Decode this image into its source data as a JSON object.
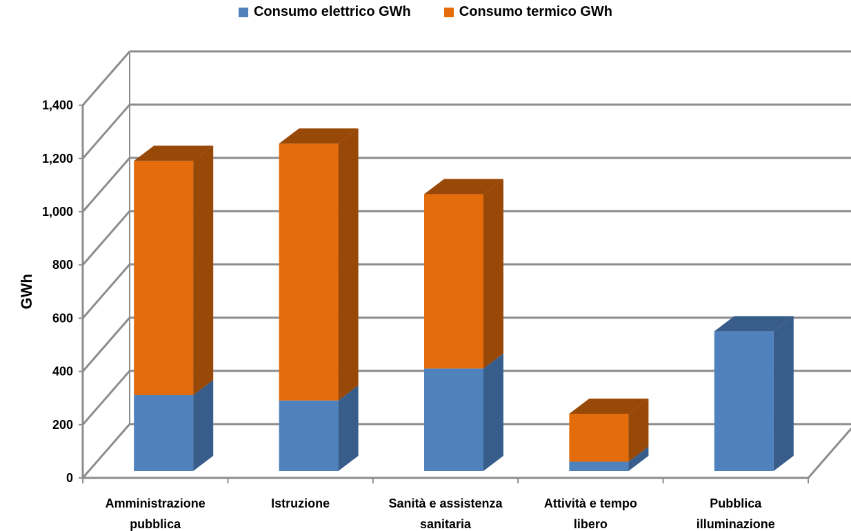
{
  "chart_data": {
    "type": "bar",
    "stacked": true,
    "three_d": true,
    "categories": [
      [
        "Amministrazione",
        "pubblica"
      ],
      [
        "Istruzione"
      ],
      [
        "Sanità e assistenza",
        "sanitaria"
      ],
      [
        "Attività e tempo",
        "libero"
      ],
      [
        "Pubblica",
        "illuminazione"
      ]
    ],
    "series": [
      {
        "name": "Consumo elettrico GWh",
        "color": "#4F81BD",
        "side_color": "#385D8A",
        "values": [
          285,
          265,
          385,
          35,
          525
        ]
      },
      {
        "name": "Consumo termico GWh",
        "color": "#E46C0A",
        "side_color": "#984807",
        "values": [
          880,
          965,
          655,
          180,
          0
        ]
      }
    ],
    "ylabel": "GWh",
    "ylim": [
      0,
      1400
    ],
    "yticks": [
      0,
      200,
      400,
      600,
      800,
      1000,
      1200,
      1400
    ],
    "ytick_labels": [
      "0",
      "200",
      "400",
      "600",
      "800",
      "1,000",
      "1,200",
      "1,400"
    ],
    "grid": true,
    "legend_position": "top"
  }
}
